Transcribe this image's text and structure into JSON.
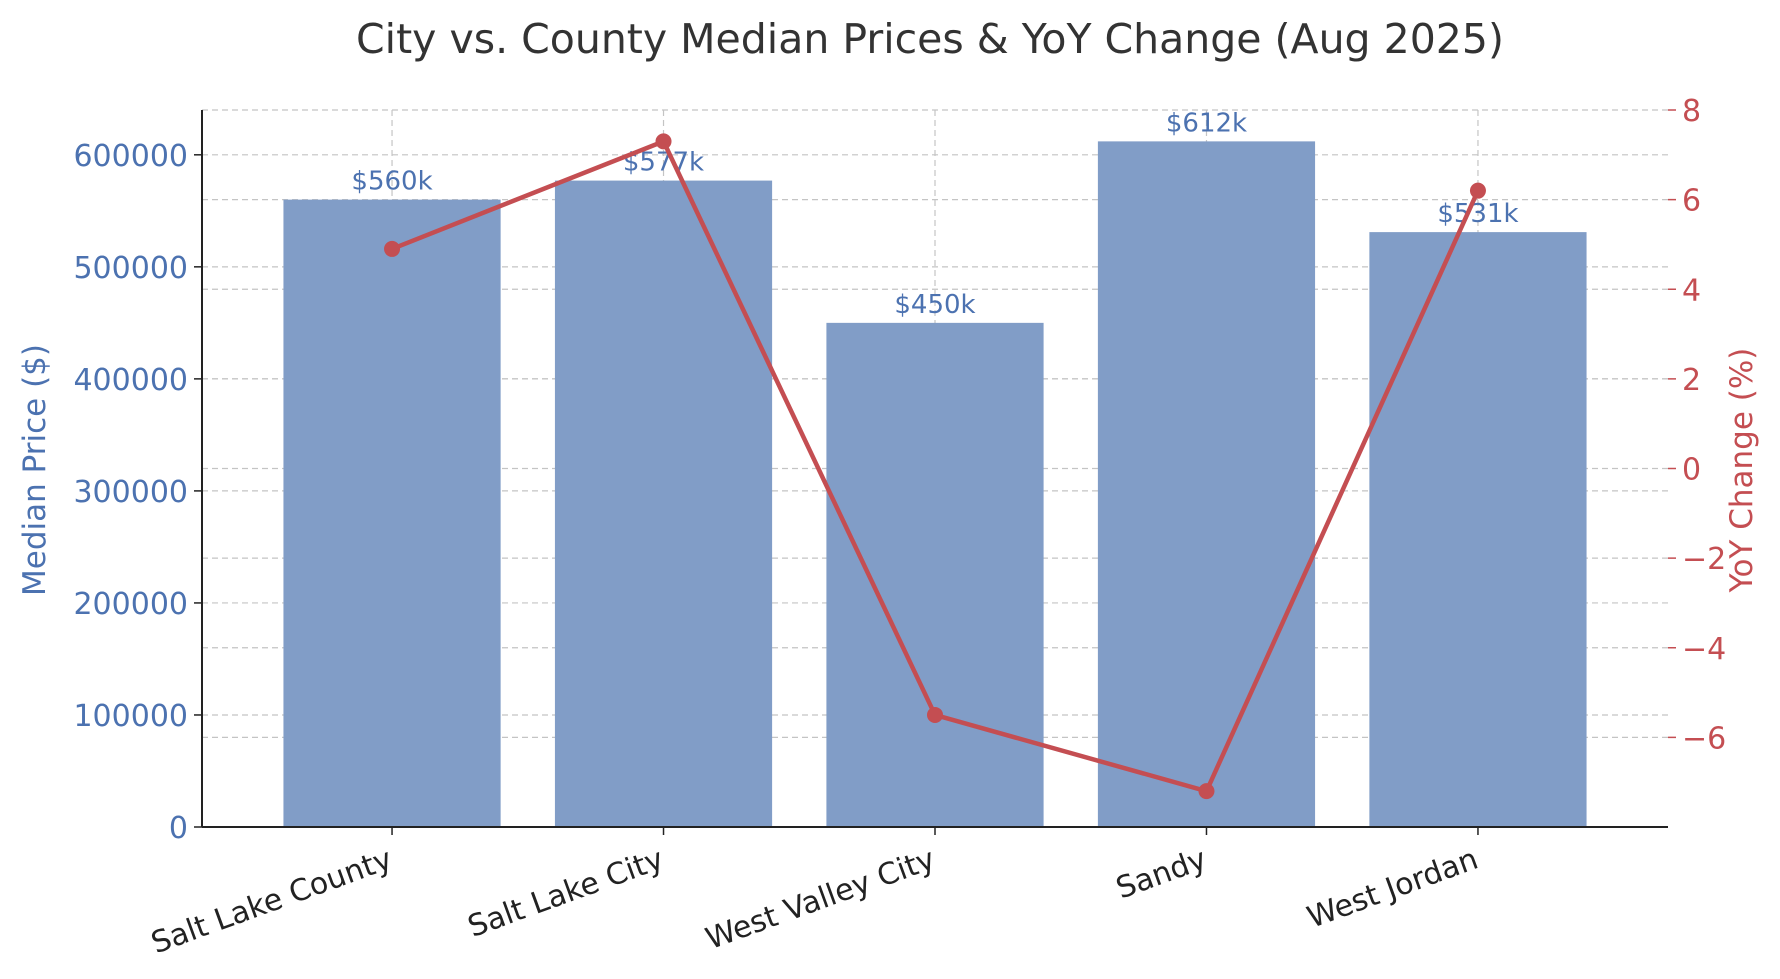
{
  "chart_data": {
    "type": "bar",
    "title": "City vs. County Median Prices & YoY Change (Aug 2025)",
    "categories": [
      "Salt Lake County",
      "Salt Lake City",
      "West Valley City",
      "Sandy",
      "West Jordan"
    ],
    "series": [
      {
        "values": [
          560000,
          577000,
          450000,
          612000,
          531000
        ],
        "data_labels": [
          "$560k",
          "$577k",
          "$450k",
          "$612k",
          "$531k"
        ],
        "type": "bar",
        "axis": "left",
        "color": "#819dc7"
      },
      {
        "values": [
          4.9,
          7.3,
          -5.5,
          -7.2,
          6.2
        ],
        "type": "line",
        "axis": "right",
        "color": "#c44e52"
      }
    ],
    "ylabel": "Median Price ($)",
    "ylabel_right": "YoY Change (%)",
    "ylim": [
      0,
      640000
    ],
    "ylim_right": [
      -8,
      8
    ],
    "yticks": [
      0,
      100000,
      200000,
      300000,
      400000,
      500000,
      600000
    ],
    "yticks_right": [
      -6,
      -4,
      -2,
      0,
      2,
      4,
      6,
      8
    ],
    "ytick_labels": [
      "0",
      "100000",
      "200000",
      "300000",
      "400000",
      "500000",
      "600000"
    ],
    "ytick_labels_right": [
      "−6",
      "−4",
      "−2",
      "0",
      "2",
      "4",
      "6",
      "8"
    ],
    "grid": true,
    "colors": {
      "bar": "#819dc7",
      "line": "#c44e52",
      "left_axis_text": "#4c72b0",
      "right_axis_text": "#c44e52",
      "data_label": "#4c72b0"
    }
  }
}
